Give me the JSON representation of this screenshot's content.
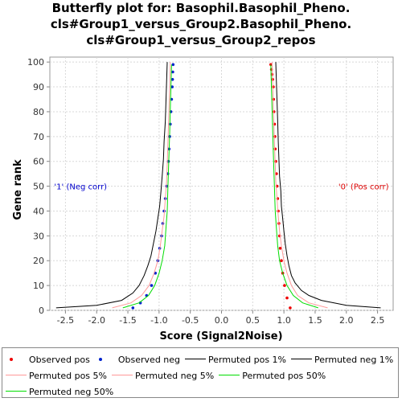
{
  "title_lines": [
    "Butterfly plot for: Basophil.Basophil_Pheno.",
    "cls#Group1_versus_Group2.Basophil_Pheno.",
    "cls#Group1_versus_Group2_repos"
  ],
  "chart_data": {
    "type": "line",
    "xlabel": "Score (Signal2Noise)",
    "ylabel": "Gene rank",
    "xlim": [
      -2.75,
      2.75
    ],
    "ylim": [
      0,
      102
    ],
    "x_ticks": [
      -2.5,
      -2.0,
      -1.5,
      -1.0,
      -0.5,
      0.0,
      0.5,
      1.0,
      1.5,
      2.0,
      2.5
    ],
    "y_ticks": [
      0,
      10,
      20,
      30,
      40,
      50,
      60,
      70,
      80,
      90,
      100
    ],
    "grid": true,
    "annotations": [
      {
        "text": "'1' (Neg corr)",
        "x": -2.68,
        "y": 50,
        "color": "#0000cc"
      },
      {
        "text": "'0' (Pos corr)",
        "x": 2.68,
        "y": 50,
        "color": "#dd0000",
        "anchor": "end"
      }
    ],
    "series": [
      {
        "name": "Observed pos",
        "style": "dots",
        "color": "#ee0000",
        "x": [
          1.1,
          1.05,
          1.01,
          0.98,
          0.96,
          0.94,
          0.93,
          0.92,
          0.91,
          0.9,
          0.89,
          0.88,
          0.87,
          0.86,
          0.855,
          0.85,
          0.84,
          0.835,
          0.83,
          0.82,
          0.81,
          0.8,
          0.79
        ],
        "y": [
          1,
          5,
          10,
          15,
          20,
          25,
          30,
          35,
          40,
          45,
          50,
          55,
          60,
          65,
          70,
          75,
          80,
          85,
          90,
          93,
          95,
          97,
          99
        ]
      },
      {
        "name": "Observed neg",
        "style": "dots",
        "color": "#0022cc",
        "x": [
          -1.42,
          -1.3,
          -1.2,
          -1.12,
          -1.06,
          -1.02,
          -0.99,
          -0.96,
          -0.94,
          -0.92,
          -0.9,
          -0.88,
          -0.86,
          -0.85,
          -0.84,
          -0.83,
          -0.82,
          -0.81,
          -0.8,
          -0.79,
          -0.785,
          -0.78,
          -0.775
        ],
        "y": [
          1,
          3,
          6,
          10,
          15,
          20,
          25,
          30,
          35,
          40,
          45,
          50,
          55,
          60,
          65,
          70,
          75,
          80,
          85,
          90,
          93,
          96,
          99
        ]
      },
      {
        "name": "Permuted pos 1%",
        "style": "line",
        "color": "#000000",
        "x": [
          2.55,
          2.0,
          1.6,
          1.4,
          1.28,
          1.18,
          1.12,
          1.08,
          1.05,
          1.02,
          1.0,
          0.98,
          0.96,
          0.95,
          0.93,
          0.92,
          0.91,
          0.9,
          0.89,
          0.88,
          0.87
        ],
        "y": [
          1,
          2,
          4,
          6,
          8,
          11,
          14,
          18,
          22,
          27,
          32,
          37,
          42,
          48,
          54,
          61,
          68,
          76,
          84,
          92,
          100
        ]
      },
      {
        "name": "Permuted neg 1%",
        "style": "line",
        "color": "#000000",
        "x": [
          -2.65,
          -2.0,
          -1.6,
          -1.42,
          -1.32,
          -1.24,
          -1.18,
          -1.13,
          -1.09,
          -1.05,
          -1.02,
          -0.99,
          -0.97,
          -0.95,
          -0.93,
          -0.92,
          -0.9,
          -0.89,
          -0.88,
          -0.87
        ],
        "y": [
          1,
          2,
          4,
          7,
          10,
          14,
          18,
          22,
          27,
          32,
          37,
          42,
          48,
          54,
          61,
          68,
          76,
          84,
          92,
          100
        ]
      },
      {
        "name": "Permuted pos 5%",
        "style": "line",
        "color": "#ff9999",
        "x": [
          1.7,
          1.4,
          1.22,
          1.12,
          1.05,
          1.0,
          0.96,
          0.93,
          0.91,
          0.89,
          0.87,
          0.86,
          0.85,
          0.84,
          0.83,
          0.82,
          0.81
        ],
        "y": [
          1,
          3,
          6,
          10,
          15,
          20,
          26,
          32,
          38,
          45,
          52,
          59,
          66,
          74,
          82,
          91,
          100
        ]
      },
      {
        "name": "Permuted neg 5%",
        "style": "line",
        "color": "#ff9999",
        "x": [
          -1.75,
          -1.45,
          -1.28,
          -1.16,
          -1.08,
          -1.02,
          -0.98,
          -0.95,
          -0.92,
          -0.9,
          -0.88,
          -0.87,
          -0.86,
          -0.85,
          -0.84,
          -0.83,
          -0.82
        ],
        "y": [
          1,
          3,
          6,
          10,
          15,
          20,
          26,
          32,
          38,
          45,
          52,
          59,
          66,
          74,
          82,
          91,
          100
        ]
      },
      {
        "name": "Permuted pos 50%",
        "style": "line",
        "color": "#00dd00",
        "x": [
          1.55,
          1.3,
          1.15,
          1.05,
          0.98,
          0.93,
          0.9,
          0.88,
          0.86,
          0.85,
          0.84,
          0.83,
          0.82,
          0.81,
          0.8,
          0.79
        ],
        "y": [
          1,
          3,
          6,
          10,
          15,
          20,
          26,
          33,
          40,
          48,
          56,
          64,
          72,
          81,
          90,
          99
        ]
      },
      {
        "name": "Permuted neg 50%",
        "style": "line",
        "color": "#00dd00",
        "x": [
          -1.58,
          -1.32,
          -1.17,
          -1.07,
          -1.0,
          -0.95,
          -0.91,
          -0.89,
          -0.87,
          -0.86,
          -0.85,
          -0.84,
          -0.83,
          -0.82,
          -0.81,
          -0.8
        ],
        "y": [
          1,
          3,
          6,
          10,
          15,
          20,
          26,
          33,
          40,
          48,
          56,
          64,
          72,
          81,
          90,
          99
        ]
      }
    ]
  }
}
